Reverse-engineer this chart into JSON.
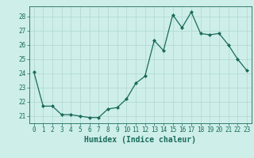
{
  "x": [
    0,
    1,
    2,
    3,
    4,
    5,
    6,
    7,
    8,
    9,
    10,
    11,
    12,
    13,
    14,
    15,
    16,
    17,
    18,
    19,
    20,
    21,
    22,
    23
  ],
  "y": [
    24.1,
    21.7,
    21.7,
    21.1,
    21.1,
    21.0,
    20.9,
    20.9,
    21.5,
    21.6,
    22.2,
    23.3,
    23.8,
    26.3,
    25.6,
    28.1,
    27.2,
    28.3,
    26.8,
    26.7,
    26.8,
    26.0,
    25.0,
    24.2
  ],
  "line_color": "#1a6b5a",
  "marker": "D",
  "marker_size": 2.0,
  "bg_color": "#cdeee9",
  "xlabel": "Humidex (Indice chaleur)",
  "xlim": [
    -0.5,
    23.5
  ],
  "ylim": [
    20.5,
    28.7
  ],
  "yticks": [
    21,
    22,
    23,
    24,
    25,
    26,
    27,
    28
  ],
  "xtick_labels": [
    "0",
    "1",
    "2",
    "3",
    "4",
    "5",
    "6",
    "7",
    "8",
    "9",
    "10",
    "11",
    "12",
    "13",
    "14",
    "15",
    "16",
    "17",
    "18",
    "19",
    "20",
    "21",
    "22",
    "23"
  ],
  "font_color": "#1a6b5a",
  "tick_fontsize": 5.5,
  "label_fontsize": 7.0,
  "grid_color": "#b0d8d2",
  "spine_color": "#1a6b5a"
}
